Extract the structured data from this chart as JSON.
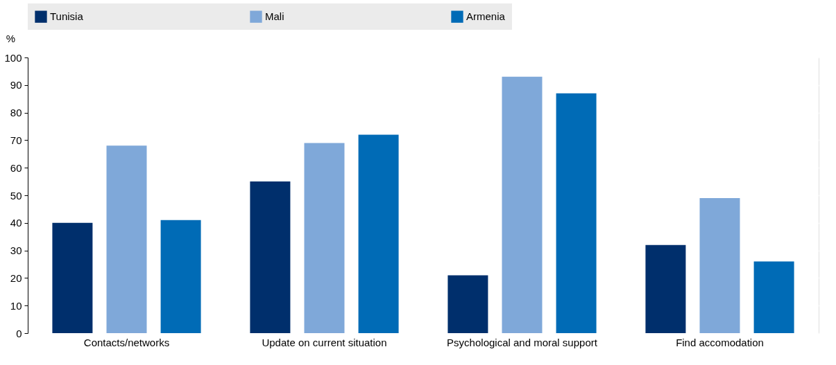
{
  "chart_data": {
    "type": "bar",
    "ylabel": "%",
    "categories": [
      "Contacts/networks",
      "Update on current situation",
      "Psychological and moral support",
      "Find accomodation"
    ],
    "series": [
      {
        "name": "Tunisia",
        "color": "#002f6c",
        "values": [
          40,
          55,
          21,
          32
        ]
      },
      {
        "name": "Mali",
        "color": "#7fa8d9",
        "values": [
          68,
          69,
          93,
          49
        ]
      },
      {
        "name": "Armenia",
        "color": "#006bb6",
        "values": [
          41,
          72,
          87,
          26
        ]
      }
    ],
    "ylim": [
      0,
      100
    ],
    "yticks": [
      0,
      10,
      20,
      30,
      40,
      50,
      60,
      70,
      80,
      90,
      100
    ],
    "grid": true,
    "legend": "top"
  }
}
